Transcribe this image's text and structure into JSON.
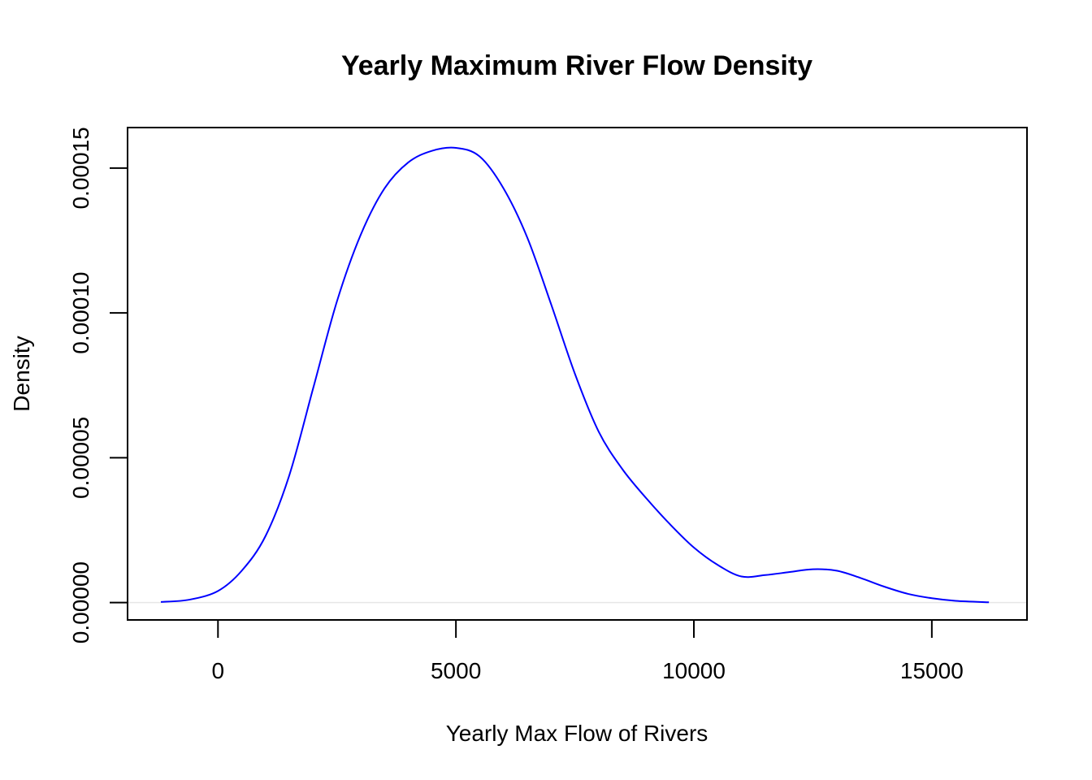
{
  "chart_data": {
    "type": "line",
    "title": "Yearly Maximum River Flow Density",
    "xlabel": "Yearly Max Flow of Rivers",
    "ylabel": "Density",
    "xlim": [
      -1900,
      17000
    ],
    "ylim": [
      -6e-06,
      0.000164
    ],
    "x_ticks": [
      0,
      5000,
      10000,
      15000
    ],
    "x_tick_labels": [
      "0",
      "5000",
      "10000",
      "15000"
    ],
    "y_ticks": [
      0,
      5e-05,
      0.0001,
      0.00015
    ],
    "y_tick_labels": [
      "0.00000",
      "0.00005",
      "0.00010",
      "0.00015"
    ],
    "grid": false,
    "legend": "none",
    "baseline": 0,
    "baseline_color": "#e6e6e6",
    "series": [
      {
        "color": "#0000ff",
        "x": [
          -1200,
          -600,
          0,
          500,
          1000,
          1500,
          2000,
          2500,
          3000,
          3500,
          4000,
          4500,
          5000,
          5500,
          6000,
          6500,
          7000,
          7500,
          8000,
          8500,
          9000,
          9500,
          10000,
          10500,
          11000,
          11500,
          12000,
          12500,
          13000,
          13500,
          14000,
          14500,
          15000,
          15500,
          16200
        ],
        "y": [
          2e-07,
          1e-06,
          4e-06,
          1.1e-05,
          2.3e-05,
          4.4e-05,
          7.4e-05,
          0.000104,
          0.000127,
          0.000143,
          0.000152,
          0.000156,
          0.000157,
          0.000154,
          0.000143,
          0.000126,
          0.000103,
          7.9e-05,
          5.9e-05,
          4.6e-05,
          3.6e-05,
          2.7e-05,
          1.9e-05,
          1.3e-05,
          9e-06,
          9.5e-06,
          1.05e-05,
          1.15e-05,
          1.1e-05,
          8.5e-06,
          5.5e-06,
          3e-06,
          1.5e-06,
          6e-07,
          1e-07
        ]
      }
    ]
  }
}
